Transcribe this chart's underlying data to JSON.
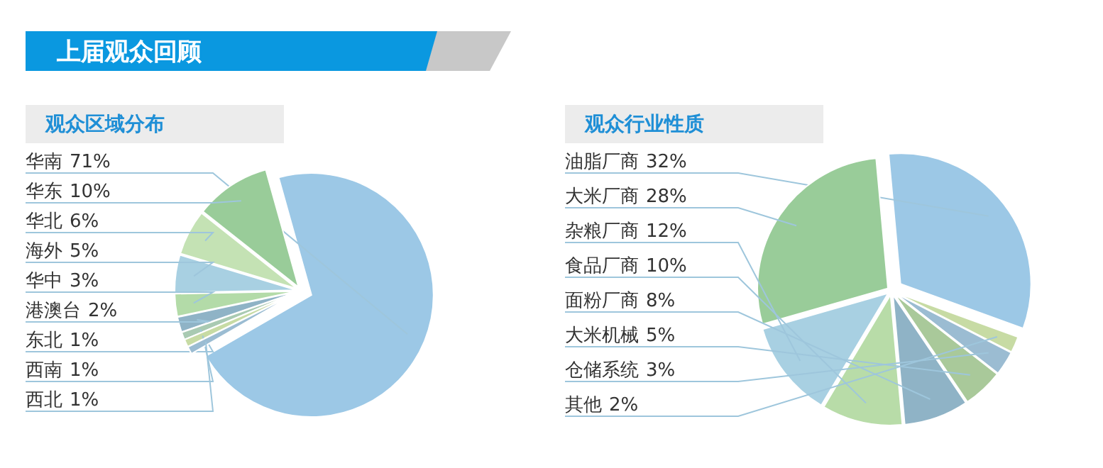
{
  "chart_data": [
    {
      "type": "pie",
      "title": "观众区域分布",
      "annotations": [
        "上届观众回顾"
      ],
      "value_labels": [
        "71%",
        "10%",
        "6%",
        "5%",
        "3%",
        "2%",
        "1%",
        "1%",
        "1%"
      ],
      "categories": [
        "华南",
        "华东",
        "华北",
        "海外",
        "华中",
        "港澳台",
        "东北",
        "西南",
        "西北"
      ],
      "values": [
        71,
        10,
        6,
        5,
        3,
        2,
        1,
        1,
        1
      ],
      "colors": [
        "#9cc8e6",
        "#99cc99",
        "#c4e2b4",
        "#a8d0e2",
        "#b3dba8",
        "#8fb3c6",
        "#a9cab2",
        "#c7dba4",
        "#9bbcd2"
      ]
    },
    {
      "type": "pie",
      "title": "观众行业性质",
      "value_labels": [
        "32%",
        "28%",
        "12%",
        "10%",
        "8%",
        "5%",
        "3%",
        "2%"
      ],
      "categories": [
        "油脂厂商",
        "大米厂商",
        "杂粮厂商",
        "食品厂商",
        "面粉厂商",
        "大米机械",
        "仓储系统",
        "其他"
      ],
      "values": [
        32,
        28,
        12,
        10,
        8,
        5,
        3,
        2
      ],
      "colors": [
        "#9cc8e6",
        "#99cc99",
        "#a8d0e2",
        "#b8dca8",
        "#8fb3c6",
        "#a9c99a",
        "#9bbcd2",
        "#c7dba4"
      ]
    }
  ]
}
